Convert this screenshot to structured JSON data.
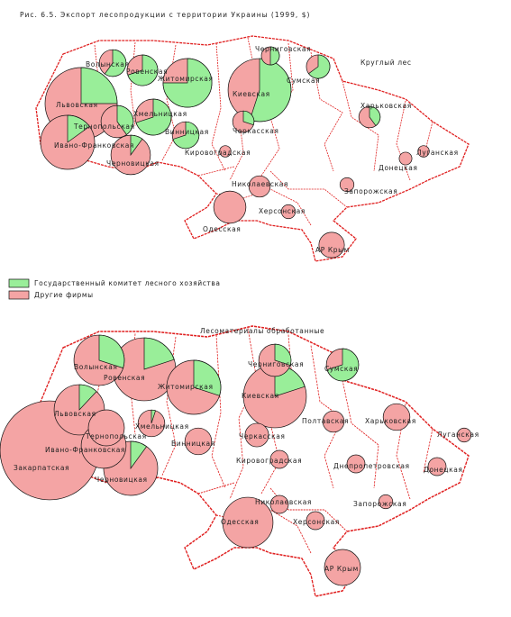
{
  "title": "Рис. 6.5. Экспорт лесопродукции с территории Украины (1999, $)",
  "legend": {
    "items": [
      {
        "label": "Государственный комитет лесного хозяйства",
        "color": "#99ee99"
      },
      {
        "label": "Другие фирмы",
        "color": "#f4a4a4"
      }
    ]
  },
  "maps": [
    {
      "label": "Круглый лес",
      "regions": [
        {
          "name": "Черниговская",
          "value": 10,
          "state_share": 50
        },
        {
          "name": "Волынская",
          "value": 22,
          "state_share": 60
        },
        {
          "name": "Ровенская",
          "value": 29,
          "state_share": 70
        },
        {
          "name": "Житомирская",
          "value": 73,
          "state_share": 75
        },
        {
          "name": "Сумская",
          "value": 17,
          "state_share": 65
        },
        {
          "name": "Киевская",
          "value": 122,
          "state_share": 55
        },
        {
          "name": "Львовская",
          "value": 160,
          "state_share": 25
        },
        {
          "name": "Хмельницкая",
          "value": 40,
          "state_share": 70
        },
        {
          "name": "Тернопольская",
          "value": 32,
          "state_share": 40
        },
        {
          "name": "Винницкая",
          "value": 22,
          "state_share": 70
        },
        {
          "name": "Черкасская",
          "value": 14,
          "state_share": 30
        },
        {
          "name": "Харьковская",
          "value": 14,
          "state_share": 40
        },
        {
          "name": "Ивано-Франковская",
          "value": 90,
          "state_share": 15
        },
        {
          "name": "Черновицкая",
          "value": 48,
          "state_share": 10
        },
        {
          "name": "Кировоградская",
          "value": 4,
          "state_share": 0
        },
        {
          "name": "Луганская",
          "value": 4,
          "state_share": 0
        },
        {
          "name": "Донецкая",
          "value": 5,
          "state_share": 0
        },
        {
          "name": "Николаевская",
          "value": 14,
          "state_share": 0
        },
        {
          "name": "Запорожская",
          "value": 6,
          "state_share": 0
        },
        {
          "name": "Херсонская",
          "value": 6,
          "state_share": 0
        },
        {
          "name": "Одесская",
          "value": 32,
          "state_share": 0
        },
        {
          "name": "АР Крым",
          "value": 20,
          "state_share": 0
        }
      ]
    },
    {
      "label": "Лесоматериалы обработанные",
      "regions": [
        {
          "name": "Черниговская",
          "value": 32,
          "state_share": 30
        },
        {
          "name": "Сумская",
          "value": 32,
          "state_share": 70
        },
        {
          "name": "Волынская",
          "value": 78,
          "state_share": 30
        },
        {
          "name": "Ровенская",
          "value": 122,
          "state_share": 20
        },
        {
          "name": "Житомирская",
          "value": 90,
          "state_share": 30
        },
        {
          "name": "Киевская",
          "value": 122,
          "state_share": 20
        },
        {
          "name": "Львовская",
          "value": 78,
          "state_share": 12
        },
        {
          "name": "Хмельницкая",
          "value": 22,
          "state_share": 5
        },
        {
          "name": "Тернопольская",
          "value": 40,
          "state_share": 0
        },
        {
          "name": "Полтавская",
          "value": 14,
          "state_share": 0
        },
        {
          "name": "Харьковская",
          "value": 22,
          "state_share": 0
        },
        {
          "name": "Луганская",
          "value": 6,
          "state_share": 0
        },
        {
          "name": "Ивано-Франковская",
          "value": 62,
          "state_share": 0
        },
        {
          "name": "Закарпатская",
          "value": 302,
          "state_share": 0
        },
        {
          "name": "Черновицкая",
          "value": 90,
          "state_share": 10
        },
        {
          "name": "Винницкая",
          "value": 22,
          "state_share": 0
        },
        {
          "name": "Черкасская",
          "value": 17,
          "state_share": 0
        },
        {
          "name": "Кировоградская",
          "value": 10,
          "state_share": 0
        },
        {
          "name": "Днепропетровская",
          "value": 10,
          "state_share": 0
        },
        {
          "name": "Донецкая",
          "value": 10,
          "state_share": 0
        },
        {
          "name": "Запорожская",
          "value": 6,
          "state_share": 0
        },
        {
          "name": "Николаевская",
          "value": 10,
          "state_share": 0
        },
        {
          "name": "Одесская",
          "value": 78,
          "state_share": 0
        },
        {
          "name": "Херсонская",
          "value": 10,
          "state_share": 0
        },
        {
          "name": "АР Крым",
          "value": 40,
          "state_share": 0
        }
      ]
    }
  ]
}
